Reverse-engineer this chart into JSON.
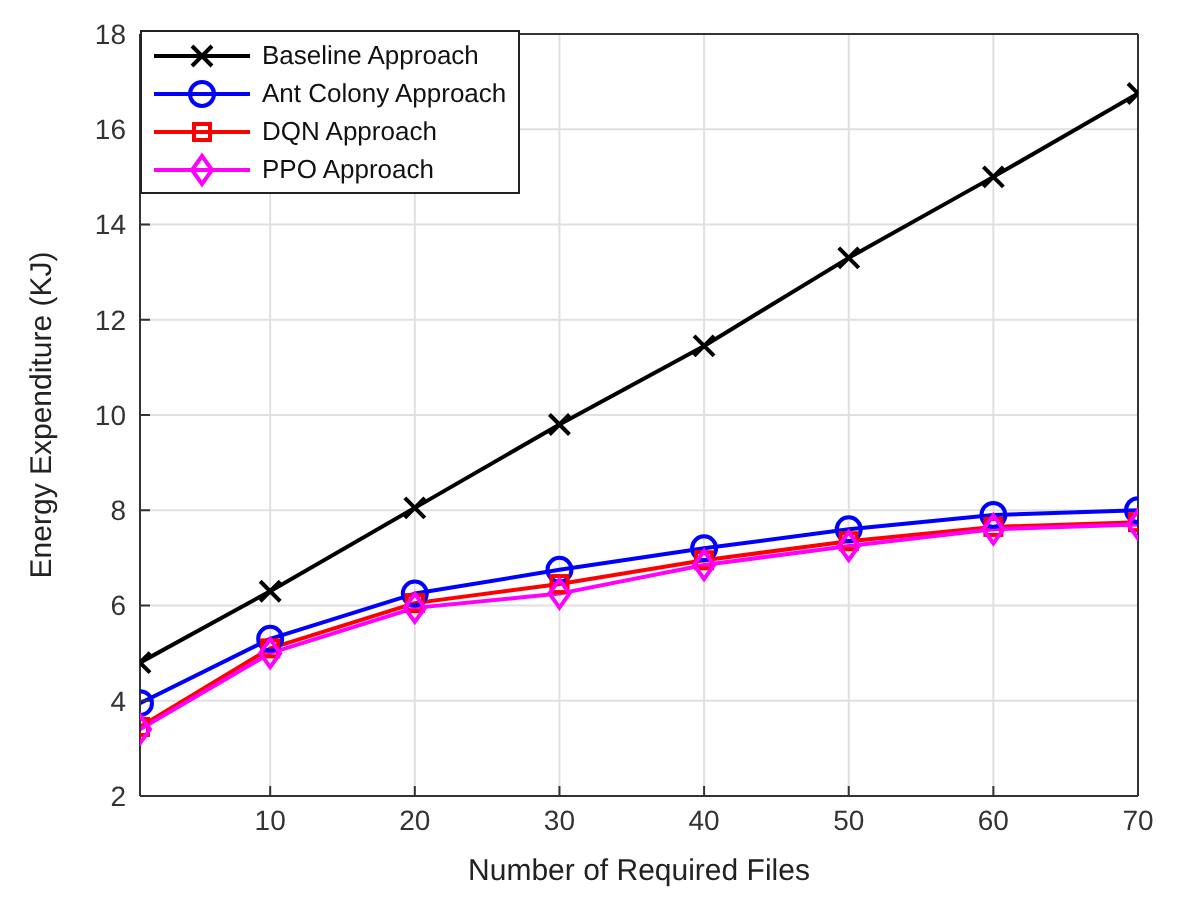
{
  "chart_data": {
    "type": "line",
    "xlabel": "Number of Required Files",
    "ylabel": "Energy Expenditure (KJ)",
    "x": [
      1,
      10,
      20,
      30,
      40,
      50,
      60,
      70
    ],
    "xlim": [
      1,
      70
    ],
    "xticks": [
      10,
      20,
      30,
      40,
      50,
      60,
      70
    ],
    "ylim": [
      2,
      18
    ],
    "yticks": [
      2,
      4,
      6,
      8,
      10,
      12,
      14,
      16,
      18
    ],
    "grid": true,
    "legend": "top left",
    "series": [
      {
        "name": "Baseline Approach",
        "color": "#000000",
        "marker": "cross",
        "values": [
          4.8,
          6.3,
          8.05,
          9.8,
          11.45,
          13.3,
          15.0,
          16.75
        ]
      },
      {
        "name": "Ant Colony Approach",
        "color": "#0000ff",
        "marker": "circle",
        "values": [
          3.95,
          5.3,
          6.25,
          6.75,
          7.2,
          7.6,
          7.9,
          8.0
        ]
      },
      {
        "name": "DQN Approach",
        "color": "#ff0000",
        "marker": "square",
        "values": [
          3.45,
          5.1,
          6.05,
          6.45,
          6.95,
          7.35,
          7.65,
          7.75
        ]
      },
      {
        "name": "PPO Approach",
        "color": "#ff00ff",
        "marker": "diamond",
        "values": [
          3.4,
          5.0,
          5.95,
          6.25,
          6.85,
          7.25,
          7.6,
          7.7
        ]
      }
    ]
  }
}
